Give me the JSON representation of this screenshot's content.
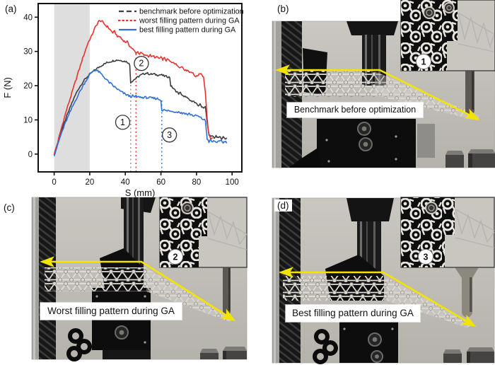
{
  "colors": {
    "arrow_yellow": "#f2e400",
    "series_benchmark": "#3d3d3d",
    "series_worst": "#e8312f",
    "series_best": "#2f6fd6",
    "preload_band": "#dedede"
  },
  "figure": {
    "panel_a": {
      "label": "(a)"
    },
    "panel_b": {
      "label": "(b)",
      "caption": "Benchmark before optimization",
      "inset_badge": "1"
    },
    "panel_c": {
      "label": "(c)",
      "caption": "Worst filling pattern during GA",
      "inset_badge": "2"
    },
    "panel_d": {
      "label": "(d)",
      "caption": "Best filling pattern during GA",
      "inset_badge": "3"
    }
  },
  "chart_data": {
    "type": "line",
    "title": "",
    "xlabel": "S (mm)",
    "ylabel": "F (N)",
    "xlim": [
      -9,
      105.5
    ],
    "ylim": [
      -5.2,
      44
    ],
    "xticks": [
      0,
      20,
      40,
      60,
      80,
      100
    ],
    "yticks": [
      0,
      10,
      20,
      30,
      40
    ],
    "grid": false,
    "legend_position": "top-right",
    "shaded_region": {
      "x0": 0,
      "x1": 20,
      "color": "#dedede"
    },
    "vlines": [
      {
        "x": 43,
        "y_top": 21,
        "color": "#909090"
      },
      {
        "x": 46,
        "y_top": 29.6,
        "color": "#e8312f"
      },
      {
        "x": 60.5,
        "y_top": 15.8,
        "color": "#2f6fd6"
      }
    ],
    "annotations": [
      {
        "label": "1",
        "x": 38.5,
        "y": 9.3
      },
      {
        "label": "2",
        "x": 49,
        "y": 26.5
      },
      {
        "label": "3",
        "x": 64.8,
        "y": 5.6
      }
    ],
    "series": [
      {
        "name": "benchmark before optimization",
        "color": "#3d3d3d",
        "legend_dash": "7 4",
        "noise": 0.28,
        "points": [
          [
            0,
            0
          ],
          [
            2,
            3
          ],
          [
            4,
            6.5
          ],
          [
            7,
            11
          ],
          [
            10,
            15
          ],
          [
            13,
            18.5
          ],
          [
            16,
            21
          ],
          [
            18,
            22.3
          ],
          [
            20,
            23.3
          ],
          [
            22,
            24.2
          ],
          [
            24,
            25
          ],
          [
            26,
            25.7
          ],
          [
            28,
            26.3
          ],
          [
            30,
            26.8
          ],
          [
            32,
            27.1
          ],
          [
            34,
            27.4
          ],
          [
            36,
            27.5
          ],
          [
            38,
            27.3
          ],
          [
            40,
            27.1
          ],
          [
            41.5,
            26.8
          ],
          [
            42.5,
            26
          ],
          [
            43,
            21
          ],
          [
            44,
            21.4
          ],
          [
            45,
            21.8
          ],
          [
            46,
            22.1
          ],
          [
            47,
            22.5
          ],
          [
            48,
            22.9
          ],
          [
            50,
            23.4
          ],
          [
            52,
            23.7
          ],
          [
            54,
            23.3
          ],
          [
            56,
            23.4
          ],
          [
            58,
            23.1
          ],
          [
            60,
            23.2
          ],
          [
            62,
            22.8
          ],
          [
            64,
            22.6
          ],
          [
            65,
            22.4
          ],
          [
            65.5,
            20
          ],
          [
            67,
            19.2
          ],
          [
            68,
            18.6
          ],
          [
            69,
            18.2
          ],
          [
            70,
            17.7
          ],
          [
            71,
            17.9
          ],
          [
            72,
            17.2
          ],
          [
            73,
            16.6
          ],
          [
            74,
            16.9
          ],
          [
            75,
            16.2
          ],
          [
            76,
            15.8
          ],
          [
            77,
            15.4
          ],
          [
            78,
            15.7
          ],
          [
            79,
            15
          ],
          [
            80,
            14.6
          ],
          [
            81,
            14.2
          ],
          [
            82,
            14.5
          ],
          [
            83,
            13.9
          ],
          [
            84,
            13.6
          ],
          [
            85,
            13.8
          ],
          [
            86,
            9
          ],
          [
            87,
            5.8
          ],
          [
            88,
            5
          ],
          [
            89,
            5.3
          ],
          [
            90,
            4.8
          ],
          [
            91,
            5.2
          ],
          [
            92,
            4.7
          ],
          [
            93,
            5
          ],
          [
            94,
            4.6
          ],
          [
            95,
            4.9
          ],
          [
            96,
            4.5
          ],
          [
            97,
            4.7
          ]
        ]
      },
      {
        "name": "worst filling pattern during GA",
        "color": "#e8312f",
        "legend_dash": "1.5 4",
        "noise": 0.3,
        "points": [
          [
            0,
            0
          ],
          [
            2,
            3.5
          ],
          [
            4,
            7.5
          ],
          [
            7,
            13
          ],
          [
            10,
            18
          ],
          [
            13,
            23
          ],
          [
            16,
            28
          ],
          [
            19,
            32.5
          ],
          [
            21,
            34.5
          ],
          [
            23,
            37
          ],
          [
            25,
            38.8
          ],
          [
            26,
            39
          ],
          [
            27,
            38.7
          ],
          [
            28,
            38.1
          ],
          [
            29,
            37.6
          ],
          [
            30,
            37.2
          ],
          [
            31,
            36.6
          ],
          [
            32,
            36
          ],
          [
            33,
            35.5
          ],
          [
            34,
            35.8
          ],
          [
            35,
            34.8
          ],
          [
            36,
            34.2
          ],
          [
            37,
            34.4
          ],
          [
            38,
            33.6
          ],
          [
            39,
            33.2
          ],
          [
            40,
            32.7
          ],
          [
            41,
            32.9
          ],
          [
            42,
            31.9
          ],
          [
            43,
            31.3
          ],
          [
            44,
            30.7
          ],
          [
            45,
            30.2
          ],
          [
            46,
            29.6
          ],
          [
            47,
            29.9
          ],
          [
            48,
            29.3
          ],
          [
            49,
            29.6
          ],
          [
            50,
            29.1
          ],
          [
            51,
            28.8
          ],
          [
            52,
            29
          ],
          [
            53,
            28.6
          ],
          [
            54,
            28.9
          ],
          [
            55,
            28.4
          ],
          [
            56,
            28.6
          ],
          [
            57,
            28.1
          ],
          [
            58,
            28.4
          ],
          [
            59,
            27.9
          ],
          [
            60,
            28.2
          ],
          [
            61,
            27.7
          ],
          [
            62,
            28
          ],
          [
            63,
            27.4
          ],
          [
            64,
            27.7
          ],
          [
            65,
            27.1
          ],
          [
            66,
            26.7
          ],
          [
            67,
            27
          ],
          [
            68,
            26.4
          ],
          [
            69,
            26
          ],
          [
            70,
            25.7
          ],
          [
            71,
            25.3
          ],
          [
            72,
            25.6
          ],
          [
            73,
            24.9
          ],
          [
            74,
            24.4
          ],
          [
            75,
            24.7
          ],
          [
            76,
            23.9
          ],
          [
            77,
            24.2
          ],
          [
            78,
            23.5
          ],
          [
            79,
            23
          ],
          [
            80,
            22.6
          ],
          [
            81,
            23.2
          ],
          [
            82,
            23.7
          ],
          [
            83,
            23.3
          ],
          [
            84,
            22.4
          ],
          [
            85,
            18
          ],
          [
            86,
            10
          ],
          [
            87,
            5.5
          ],
          [
            88,
            4.6
          ],
          [
            89,
            4.9
          ]
        ]
      },
      {
        "name": "best filling pattern during GA",
        "color": "#2f6fd6",
        "legend_dash": null,
        "noise": 0.33,
        "points": [
          [
            0,
            -0.3
          ],
          [
            2,
            2.8
          ],
          [
            4,
            6
          ],
          [
            7,
            10
          ],
          [
            10,
            13.5
          ],
          [
            13,
            16.8
          ],
          [
            16,
            19.8
          ],
          [
            18,
            21.6
          ],
          [
            20,
            23.2
          ],
          [
            21,
            23.9
          ],
          [
            22,
            24.3
          ],
          [
            23,
            24.6
          ],
          [
            24,
            24.4
          ],
          [
            25,
            24.1
          ],
          [
            26,
            23.6
          ],
          [
            27,
            23.1
          ],
          [
            28,
            22.5
          ],
          [
            29,
            22
          ],
          [
            30,
            21.4
          ],
          [
            31,
            20.9
          ],
          [
            32,
            20.5
          ],
          [
            33,
            20
          ],
          [
            34,
            19.6
          ],
          [
            35,
            19.2
          ],
          [
            36,
            18.8
          ],
          [
            37,
            18.4
          ],
          [
            38,
            18.1
          ],
          [
            39,
            17.8
          ],
          [
            40,
            17.5
          ],
          [
            41,
            17.3
          ],
          [
            42,
            17
          ],
          [
            43,
            16.8
          ],
          [
            44,
            17
          ],
          [
            45,
            16.7
          ],
          [
            46,
            16.9
          ],
          [
            47,
            16.6
          ],
          [
            48,
            16.8
          ],
          [
            49,
            16.5
          ],
          [
            50,
            16.6
          ],
          [
            52,
            16.5
          ],
          [
            54,
            16.4
          ],
          [
            56,
            16.3
          ],
          [
            58,
            16.2
          ],
          [
            59,
            16
          ],
          [
            60,
            15.8
          ],
          [
            60.5,
            13
          ],
          [
            61,
            12.7
          ],
          [
            62,
            12.9
          ],
          [
            63,
            12.6
          ],
          [
            64,
            12.8
          ],
          [
            65,
            12.5
          ],
          [
            66,
            12.7
          ],
          [
            67,
            12.4
          ],
          [
            68,
            12.5
          ],
          [
            69,
            12.2
          ],
          [
            70,
            12.4
          ],
          [
            71,
            12.1
          ],
          [
            72,
            11.9
          ],
          [
            73,
            12.1
          ],
          [
            74,
            11.8
          ],
          [
            75,
            11.6
          ],
          [
            76,
            11.8
          ],
          [
            77,
            11.5
          ],
          [
            78,
            11.3
          ],
          [
            79,
            11.1
          ],
          [
            80,
            11.3
          ],
          [
            81,
            11
          ],
          [
            82,
            10.7
          ],
          [
            83,
            10.4
          ],
          [
            84,
            10.1
          ],
          [
            85,
            9.8
          ],
          [
            86,
            4.5
          ],
          [
            87,
            3.6
          ],
          [
            88,
            4
          ],
          [
            89,
            3.5
          ],
          [
            90,
            3.9
          ],
          [
            91,
            3.4
          ],
          [
            92,
            3.8
          ],
          [
            93,
            3.5
          ],
          [
            94,
            3.9
          ],
          [
            95,
            3.4
          ],
          [
            96,
            3.7
          ],
          [
            97,
            3.5
          ]
        ]
      }
    ]
  }
}
